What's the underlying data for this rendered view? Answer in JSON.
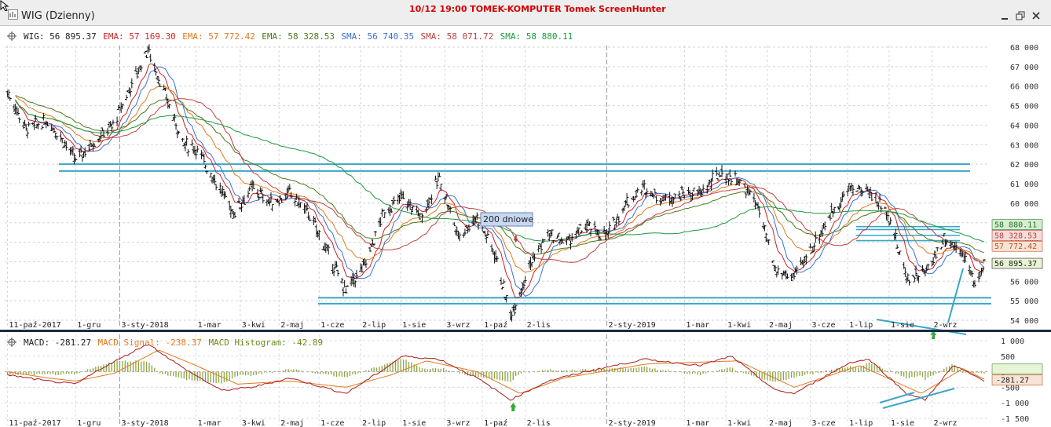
{
  "window": {
    "title": "WIG (Dzienny)",
    "watermark": "10/12  19:00  TOMEK-KOMPUTER  Tomek  ScreenHunter"
  },
  "legend": {
    "items": [
      {
        "text": "WIG: 56 895.37",
        "color": "#222222"
      },
      {
        "text": "EMA: 57 169.30",
        "color": "#cc2222"
      },
      {
        "text": "EMA: 57 772.42",
        "color": "#e07a1f"
      },
      {
        "text": "EMA: 58 328.53",
        "color": "#4a7a1a"
      },
      {
        "text": "SMA: 56 740.35",
        "color": "#3a6fd0"
      },
      {
        "text": "SMA: 58 071.72",
        "color": "#c04040"
      },
      {
        "text": "SMA: 58 880.11",
        "color": "#1a9a3a"
      }
    ]
  },
  "macd_legend": {
    "items": [
      {
        "text": "MACD: -281.27",
        "color": "#222222"
      },
      {
        "text": "MACD Signal: -238.37",
        "color": "#e07a1f"
      },
      {
        "text": "MACD Histogram: -42.89",
        "color": "#6a8a1a"
      }
    ]
  },
  "annotation": {
    "label": "200 dniowe"
  },
  "chart_data": [
    {
      "type": "ohlc",
      "title": "WIG (Dzienny)",
      "y_ticks": [
        "68 000",
        "67 000",
        "66 000",
        "65 000",
        "64 000",
        "63 000",
        "62 000",
        "61 000",
        "60 000",
        "59 000",
        "58 000",
        "57 000",
        "56 000",
        "55 000",
        "54 000"
      ],
      "ylim": [
        54000,
        68000
      ],
      "x_ticks": [
        "11-paź-2017",
        "1-gru",
        "3-sty-2018",
        "1-mar",
        "3-kwi",
        "2-maj",
        "1-cze",
        "2-lip",
        "1-sie",
        "3-wrz",
        "1-paź",
        "2-lis",
        "2-sty-2019",
        "1-mar",
        "1-kwi",
        "2-maj",
        "3-cze",
        "1-lip",
        "1-sie",
        "2-wrz"
      ],
      "close_path": [
        [
          "2017-10-11",
          65700
        ],
        [
          "2017-10-25",
          63800
        ],
        [
          "2017-11-10",
          64200
        ],
        [
          "2017-11-20",
          63400
        ],
        [
          "2017-12-01",
          62200
        ],
        [
          "2017-12-15",
          63200
        ],
        [
          "2017-12-29",
          64000
        ],
        [
          "2018-01-10",
          65800
        ],
        [
          "2018-01-24",
          67900
        ],
        [
          "2018-02-06",
          65500
        ],
        [
          "2018-02-20",
          63000
        ],
        [
          "2018-03-01",
          62800
        ],
        [
          "2018-03-15",
          61200
        ],
        [
          "2018-03-29",
          59500
        ],
        [
          "2018-04-12",
          60800
        ],
        [
          "2018-04-26",
          60000
        ],
        [
          "2018-05-10",
          60500
        ],
        [
          "2018-05-24",
          59500
        ],
        [
          "2018-06-07",
          57500
        ],
        [
          "2018-06-21",
          55500
        ],
        [
          "2018-07-05",
          56800
        ],
        [
          "2018-07-19",
          59500
        ],
        [
          "2018-08-02",
          60300
        ],
        [
          "2018-08-16",
          59300
        ],
        [
          "2018-08-30",
          61300
        ],
        [
          "2018-09-13",
          58300
        ],
        [
          "2018-09-27",
          59300
        ],
        [
          "2018-10-11",
          57300
        ],
        [
          "2018-10-22",
          54200
        ],
        [
          "2018-11-05",
          56800
        ],
        [
          "2018-11-19",
          58400
        ],
        [
          "2018-12-03",
          58000
        ],
        [
          "2018-12-17",
          58800
        ],
        [
          "2019-01-02",
          58300
        ],
        [
          "2019-01-16",
          60000
        ],
        [
          "2019-01-30",
          60800
        ],
        [
          "2019-02-13",
          60200
        ],
        [
          "2019-02-27",
          60500
        ],
        [
          "2019-03-13",
          60500
        ],
        [
          "2019-03-27",
          61500
        ],
        [
          "2019-04-10",
          61200
        ],
        [
          "2019-04-24",
          60000
        ],
        [
          "2019-05-08",
          56500
        ],
        [
          "2019-05-22",
          56200
        ],
        [
          "2019-06-05",
          57800
        ],
        [
          "2019-06-19",
          59500
        ],
        [
          "2019-07-03",
          60800
        ],
        [
          "2019-07-17",
          60600
        ],
        [
          "2019-07-31",
          59500
        ],
        [
          "2019-08-14",
          56200
        ],
        [
          "2019-08-28",
          56400
        ],
        [
          "2019-09-11",
          58200
        ],
        [
          "2019-09-25",
          57500
        ],
        [
          "2019-10-04",
          55800
        ],
        [
          "2019-10-11",
          56900
        ]
      ],
      "horizontal_levels": [
        62000,
        61650,
        55150,
        54850
      ],
      "indicator_values": [
        {
          "label": "58 880.11",
          "value": 58880.11,
          "bg": "#d8ecd0",
          "color": "#1a7a2a"
        },
        {
          "label": "58 328.53",
          "value": 58328.53,
          "bg": "#f4dcd8",
          "color": "#c04040"
        },
        {
          "label": "57 772.42",
          "value": 57772.42,
          "bg": "#f8e4d4",
          "color": "#c05020"
        },
        {
          "label": "56 895.37",
          "value": 56895.37,
          "bg": "#e8f4d4",
          "color": "#222222"
        }
      ]
    },
    {
      "type": "line",
      "title": "MACD",
      "y_ticks": [
        "1 000",
        "500",
        "0",
        "-500",
        "-1 000",
        "-1 500"
      ],
      "ylim": [
        -1600,
        1100
      ],
      "series": [
        {
          "name": "MACD",
          "values": [
            [
              "2017-10-11",
              -100
            ],
            [
              "2017-11-10",
              -300
            ],
            [
              "2017-12-01",
              -400
            ],
            [
              "2017-12-20",
              100
            ],
            [
              "2018-01-24",
              900
            ],
            [
              "2018-02-20",
              100
            ],
            [
              "2018-03-20",
              -600
            ],
            [
              "2018-04-12",
              -500
            ],
            [
              "2018-05-10",
              -200
            ],
            [
              "2018-06-21",
              -700
            ],
            [
              "2018-07-20",
              100
            ],
            [
              "2018-08-02",
              500
            ],
            [
              "2018-08-30",
              400
            ],
            [
              "2018-09-27",
              -200
            ],
            [
              "2018-10-22",
              -900
            ],
            [
              "2018-11-19",
              -300
            ],
            [
              "2018-12-17",
              0
            ],
            [
              "2019-01-30",
              400
            ],
            [
              "2019-03-13",
              200
            ],
            [
              "2019-04-05",
              500
            ],
            [
              "2019-05-08",
              -600
            ],
            [
              "2019-05-22",
              -700
            ],
            [
              "2019-07-03",
              300
            ],
            [
              "2019-07-17",
              400
            ],
            [
              "2019-08-14",
              -700
            ],
            [
              "2019-08-28",
              -900
            ],
            [
              "2019-09-18",
              200
            ],
            [
              "2019-10-11",
              -281
            ]
          ]
        },
        {
          "name": "MACD Signal",
          "values": [
            [
              "2017-10-11",
              0
            ],
            [
              "2017-11-10",
              -200
            ],
            [
              "2017-12-01",
              -300
            ],
            [
              "2017-12-30",
              -50
            ],
            [
              "2018-02-01",
              700
            ],
            [
              "2018-03-01",
              200
            ],
            [
              "2018-04-01",
              -400
            ],
            [
              "2018-05-10",
              -300
            ],
            [
              "2018-06-21",
              -500
            ],
            [
              "2018-07-25",
              -100
            ],
            [
              "2018-08-20",
              350
            ],
            [
              "2018-09-27",
              0
            ],
            [
              "2018-10-29",
              -700
            ],
            [
              "2018-12-01",
              -200
            ],
            [
              "2019-02-01",
              250
            ],
            [
              "2019-04-10",
              350
            ],
            [
              "2019-05-22",
              -500
            ],
            [
              "2019-07-10",
              200
            ],
            [
              "2019-08-25",
              -700
            ],
            [
              "2019-09-25",
              100
            ],
            [
              "2019-10-11",
              -238
            ]
          ]
        }
      ]
    }
  ]
}
